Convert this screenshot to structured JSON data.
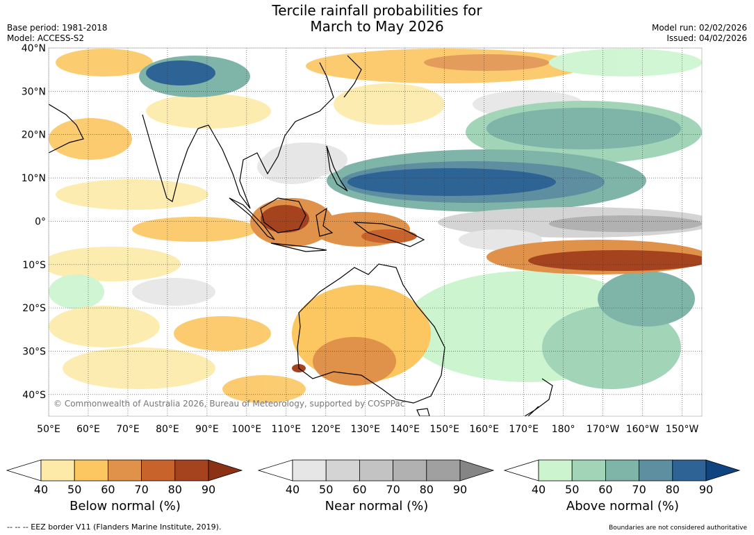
{
  "title_line1": "Tercile rainfall probabilities for",
  "title_line2": "March to May 2026",
  "base_period": "Base period: 1981-2018",
  "model": "Model: ACCESS-S2",
  "model_run": "Model run: 02/02/2026",
  "issued": "Issued: 04/02/2026",
  "copyright": "© Commonwealth of Australia 2026, Bureau of Meteorology, supported by COSPPac",
  "lat_labels": [
    "40°N",
    "30°N",
    "20°N",
    "10°N",
    "0°",
    "10°S",
    "20°S",
    "30°S",
    "40°S"
  ],
  "lat_values": [
    40,
    30,
    20,
    10,
    0,
    -10,
    -20,
    -30,
    -40
  ],
  "lon_labels": [
    "50°E",
    "60°E",
    "70°E",
    "80°E",
    "90°E",
    "100°E",
    "110°E",
    "120°E",
    "130°E",
    "140°E",
    "150°E",
    "160°E",
    "170°E",
    "180°",
    "170°W",
    "160°W",
    "150°W"
  ],
  "lon_values": [
    50,
    60,
    70,
    80,
    90,
    100,
    110,
    120,
    130,
    140,
    150,
    160,
    170,
    180,
    190,
    200,
    210
  ],
  "map_extent": {
    "lon_min": 50,
    "lon_max": 215,
    "lat_min": -45,
    "lat_max": 40
  },
  "colorbars": [
    {
      "title": "Below normal (%)",
      "ticks": [
        "40",
        "50",
        "60",
        "70",
        "80",
        "90"
      ],
      "colors": [
        "#fdeaa8",
        "#fcc661",
        "#e0924a",
        "#c9632c",
        "#a5431f",
        "#8c3114"
      ]
    },
    {
      "title": "Near normal (%)",
      "ticks": [
        "40",
        "50",
        "60",
        "70",
        "80",
        "90"
      ],
      "colors": [
        "#e6e6e6",
        "#d4d4d4",
        "#c3c3c3",
        "#b1b1b1",
        "#a0a0a0",
        "#858585"
      ]
    },
    {
      "title": "Above normal (%)",
      "ticks": [
        "40",
        "50",
        "60",
        "70",
        "80",
        "90"
      ],
      "colors": [
        "#ccf5cf",
        "#a2d5b8",
        "#7fb4a9",
        "#5e8fa0",
        "#2e6395",
        "#0f4480"
      ]
    }
  ],
  "eez_note": "--  --  -- EEZ border V11 (Flanders Marine Institute, 2019).",
  "disclaimer": "Boundaries are not considered authoritative"
}
